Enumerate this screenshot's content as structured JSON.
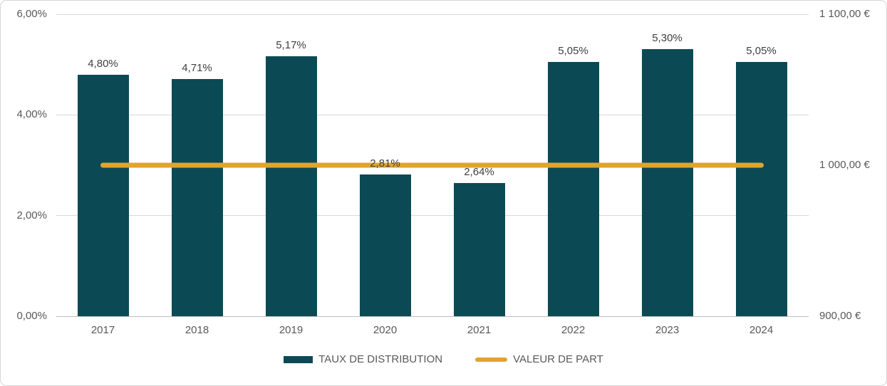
{
  "chart_data": {
    "type": "bar",
    "title": "",
    "categories": [
      "2017",
      "2018",
      "2019",
      "2020",
      "2021",
      "2022",
      "2023",
      "2024"
    ],
    "series": [
      {
        "name": "TAUX DE DISTRIBUTION",
        "type": "bar",
        "axis": "left",
        "values": [
          4.8,
          4.71,
          5.17,
          2.81,
          2.64,
          5.05,
          5.3,
          5.05
        ],
        "data_labels": [
          "4,80%",
          "4,71%",
          "5,17%",
          "2,81%",
          "2,64%",
          "5,05%",
          "5,30%",
          "5,05%"
        ],
        "color": "#0B4A55"
      },
      {
        "name": "VALEUR DE PART",
        "type": "line",
        "axis": "right",
        "values": [
          1000,
          1000,
          1000,
          1000,
          1000,
          1000,
          1000,
          1000
        ],
        "data_labels": [],
        "color": "#E0A42E"
      }
    ],
    "left_axis": {
      "min": 0,
      "max": 6,
      "ticks": [
        {
          "value": 0,
          "label": "0,00%"
        },
        {
          "value": 2,
          "label": "2,00%"
        },
        {
          "value": 4,
          "label": "4,00%"
        },
        {
          "value": 6,
          "label": "6,00%"
        }
      ]
    },
    "right_axis": {
      "min": 900,
      "max": 1100,
      "ticks": [
        {
          "value": 900,
          "label": "900,00 €"
        },
        {
          "value": 1000,
          "label": "1 000,00 €"
        },
        {
          "value": 1100,
          "label": "1 100,00 €"
        }
      ]
    },
    "grid": true,
    "legend_position": "bottom"
  },
  "legend": {
    "items": [
      {
        "label": "TAUX DE DISTRIBUTION",
        "swatch": "bar",
        "color": "#0B4A55"
      },
      {
        "label": "VALEUR DE PART",
        "swatch": "line",
        "color": "#E0A42E"
      }
    ]
  },
  "colors": {
    "bar": "#0B4A55",
    "line": "#E0A42E",
    "axis_text": "#595959",
    "data_label_text": "#404040",
    "gridline": "#D9D9D9",
    "chart_border": "#D6D6D6",
    "background": "#FFFFFF"
  }
}
